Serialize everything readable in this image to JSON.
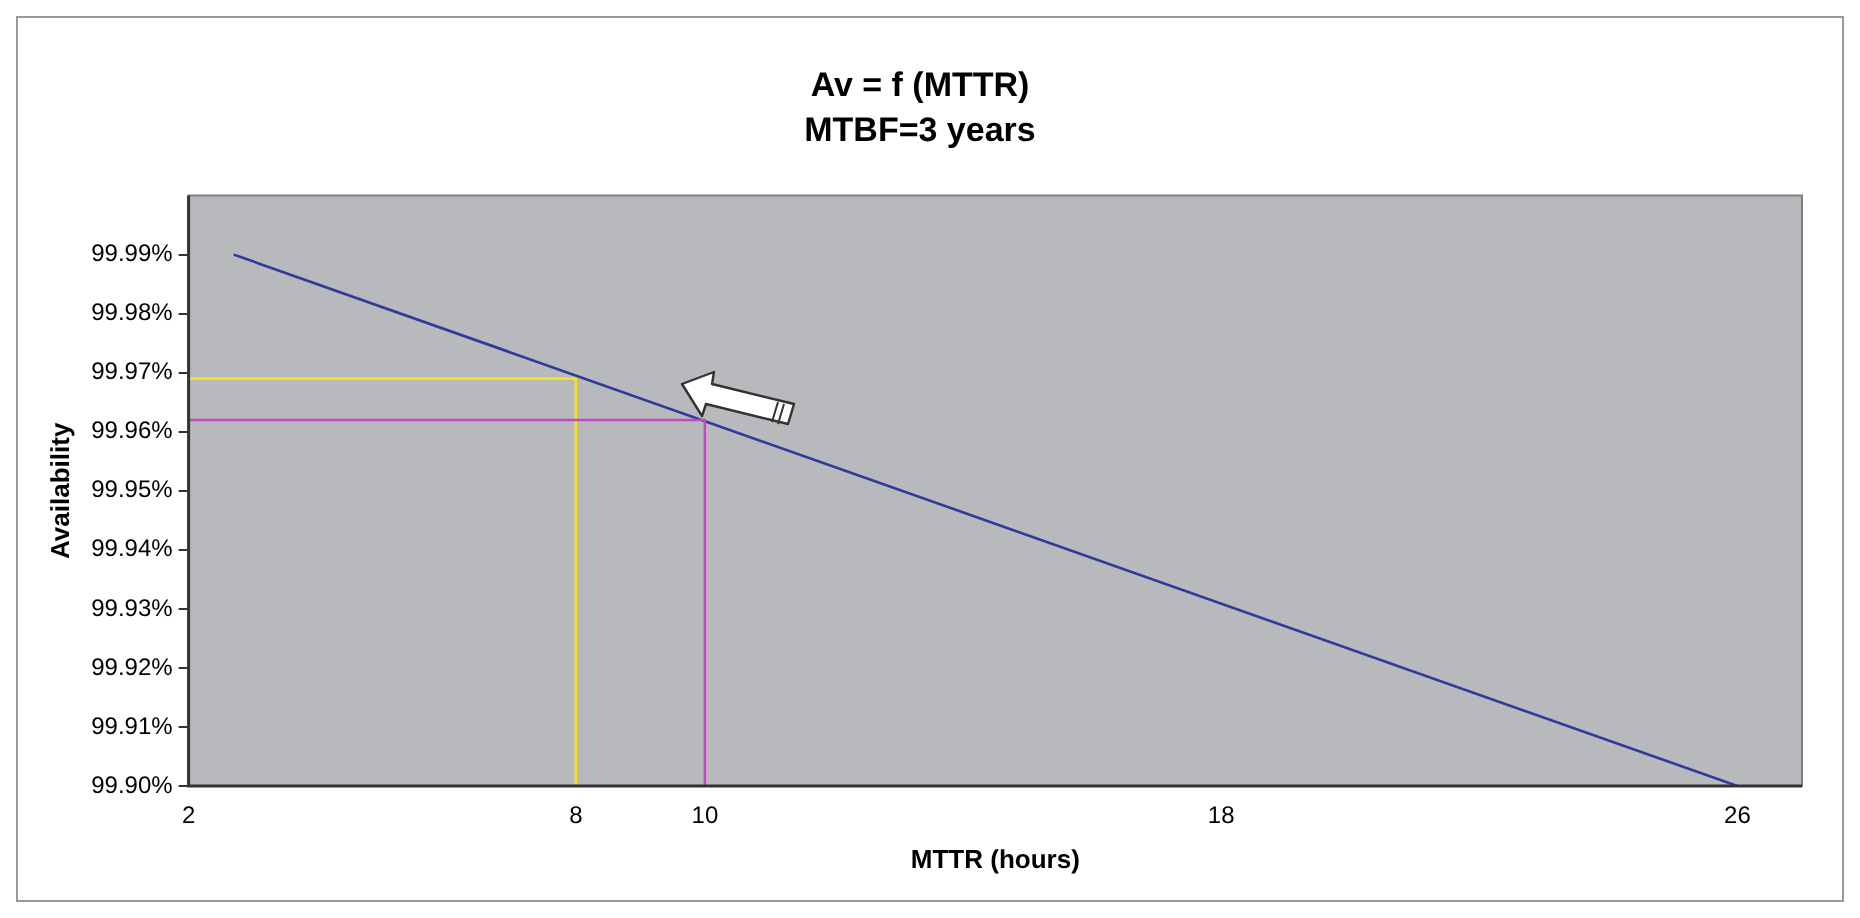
{
  "chart_data": {
    "type": "line",
    "title": "Av = f (MTTR)",
    "subtitle": "MTBF=3 years",
    "xlabel": "MTTR (hours)",
    "ylabel": "Availability",
    "xlim": [
      2,
      27
    ],
    "xticks": [
      2,
      8,
      10,
      18,
      26
    ],
    "ylim": [
      99.9,
      100
    ],
    "yticks": [
      {
        "value": 99.9,
        "label": "99.90%"
      },
      {
        "value": 99.91,
        "label": "99.91%"
      },
      {
        "value": 99.92,
        "label": "99.92%"
      },
      {
        "value": 99.93,
        "label": "99.93%"
      },
      {
        "value": 99.94,
        "label": "99.94%"
      },
      {
        "value": 99.95,
        "label": "99.95%"
      },
      {
        "value": 99.96,
        "label": "99.96%"
      },
      {
        "value": 99.97,
        "label": "99.97%"
      },
      {
        "value": 99.98,
        "label": "99.98%"
      },
      {
        "value": 99.99,
        "label": "99.99%"
      }
    ],
    "grid": false,
    "legend": false,
    "marker": "none",
    "line_style": "solid",
    "series": [
      {
        "color": "#2e3a9c",
        "x": [
          2.7,
          26
        ],
        "values": [
          99.99,
          99.9
        ]
      },
      {
        "type": "line",
        "color": "#f2e41c",
        "x": [
          2,
          8,
          8
        ],
        "values": [
          99.969,
          99.969,
          99.9
        ]
      },
      {
        "type": "line",
        "color": "#c04cc0",
        "x": [
          2,
          10,
          10
        ],
        "values": [
          99.962,
          99.962,
          99.9
        ]
      }
    ]
  }
}
